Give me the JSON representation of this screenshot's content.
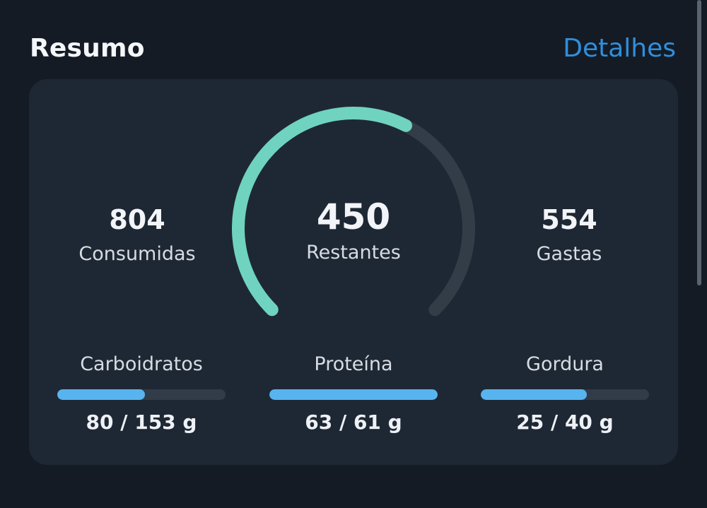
{
  "header": {
    "title": "Resumo",
    "details_label": "Detalhes"
  },
  "summary": {
    "consumed": {
      "value": "804",
      "label": "Consumidas"
    },
    "remaining": {
      "value": "450",
      "label": "Restantes"
    },
    "burned": {
      "value": "554",
      "label": "Gastas"
    },
    "gauge_progress": 0.6
  },
  "macros": [
    {
      "label": "Carboidratos",
      "value": "80 / 153 g",
      "progress": 0.52
    },
    {
      "label": "Proteína",
      "value": "63 / 61 g",
      "progress": 1.0
    },
    {
      "label": "Gordura",
      "value": "25 / 40 g",
      "progress": 0.63
    }
  ],
  "colors": {
    "background": "#141b25",
    "card": "#1e2834",
    "accent_link": "#2f8fdc",
    "gauge_fill": "#6fd3bf",
    "gauge_track": "#333d48",
    "bar_fill": "#58b4ee",
    "bar_track": "#323c48"
  }
}
